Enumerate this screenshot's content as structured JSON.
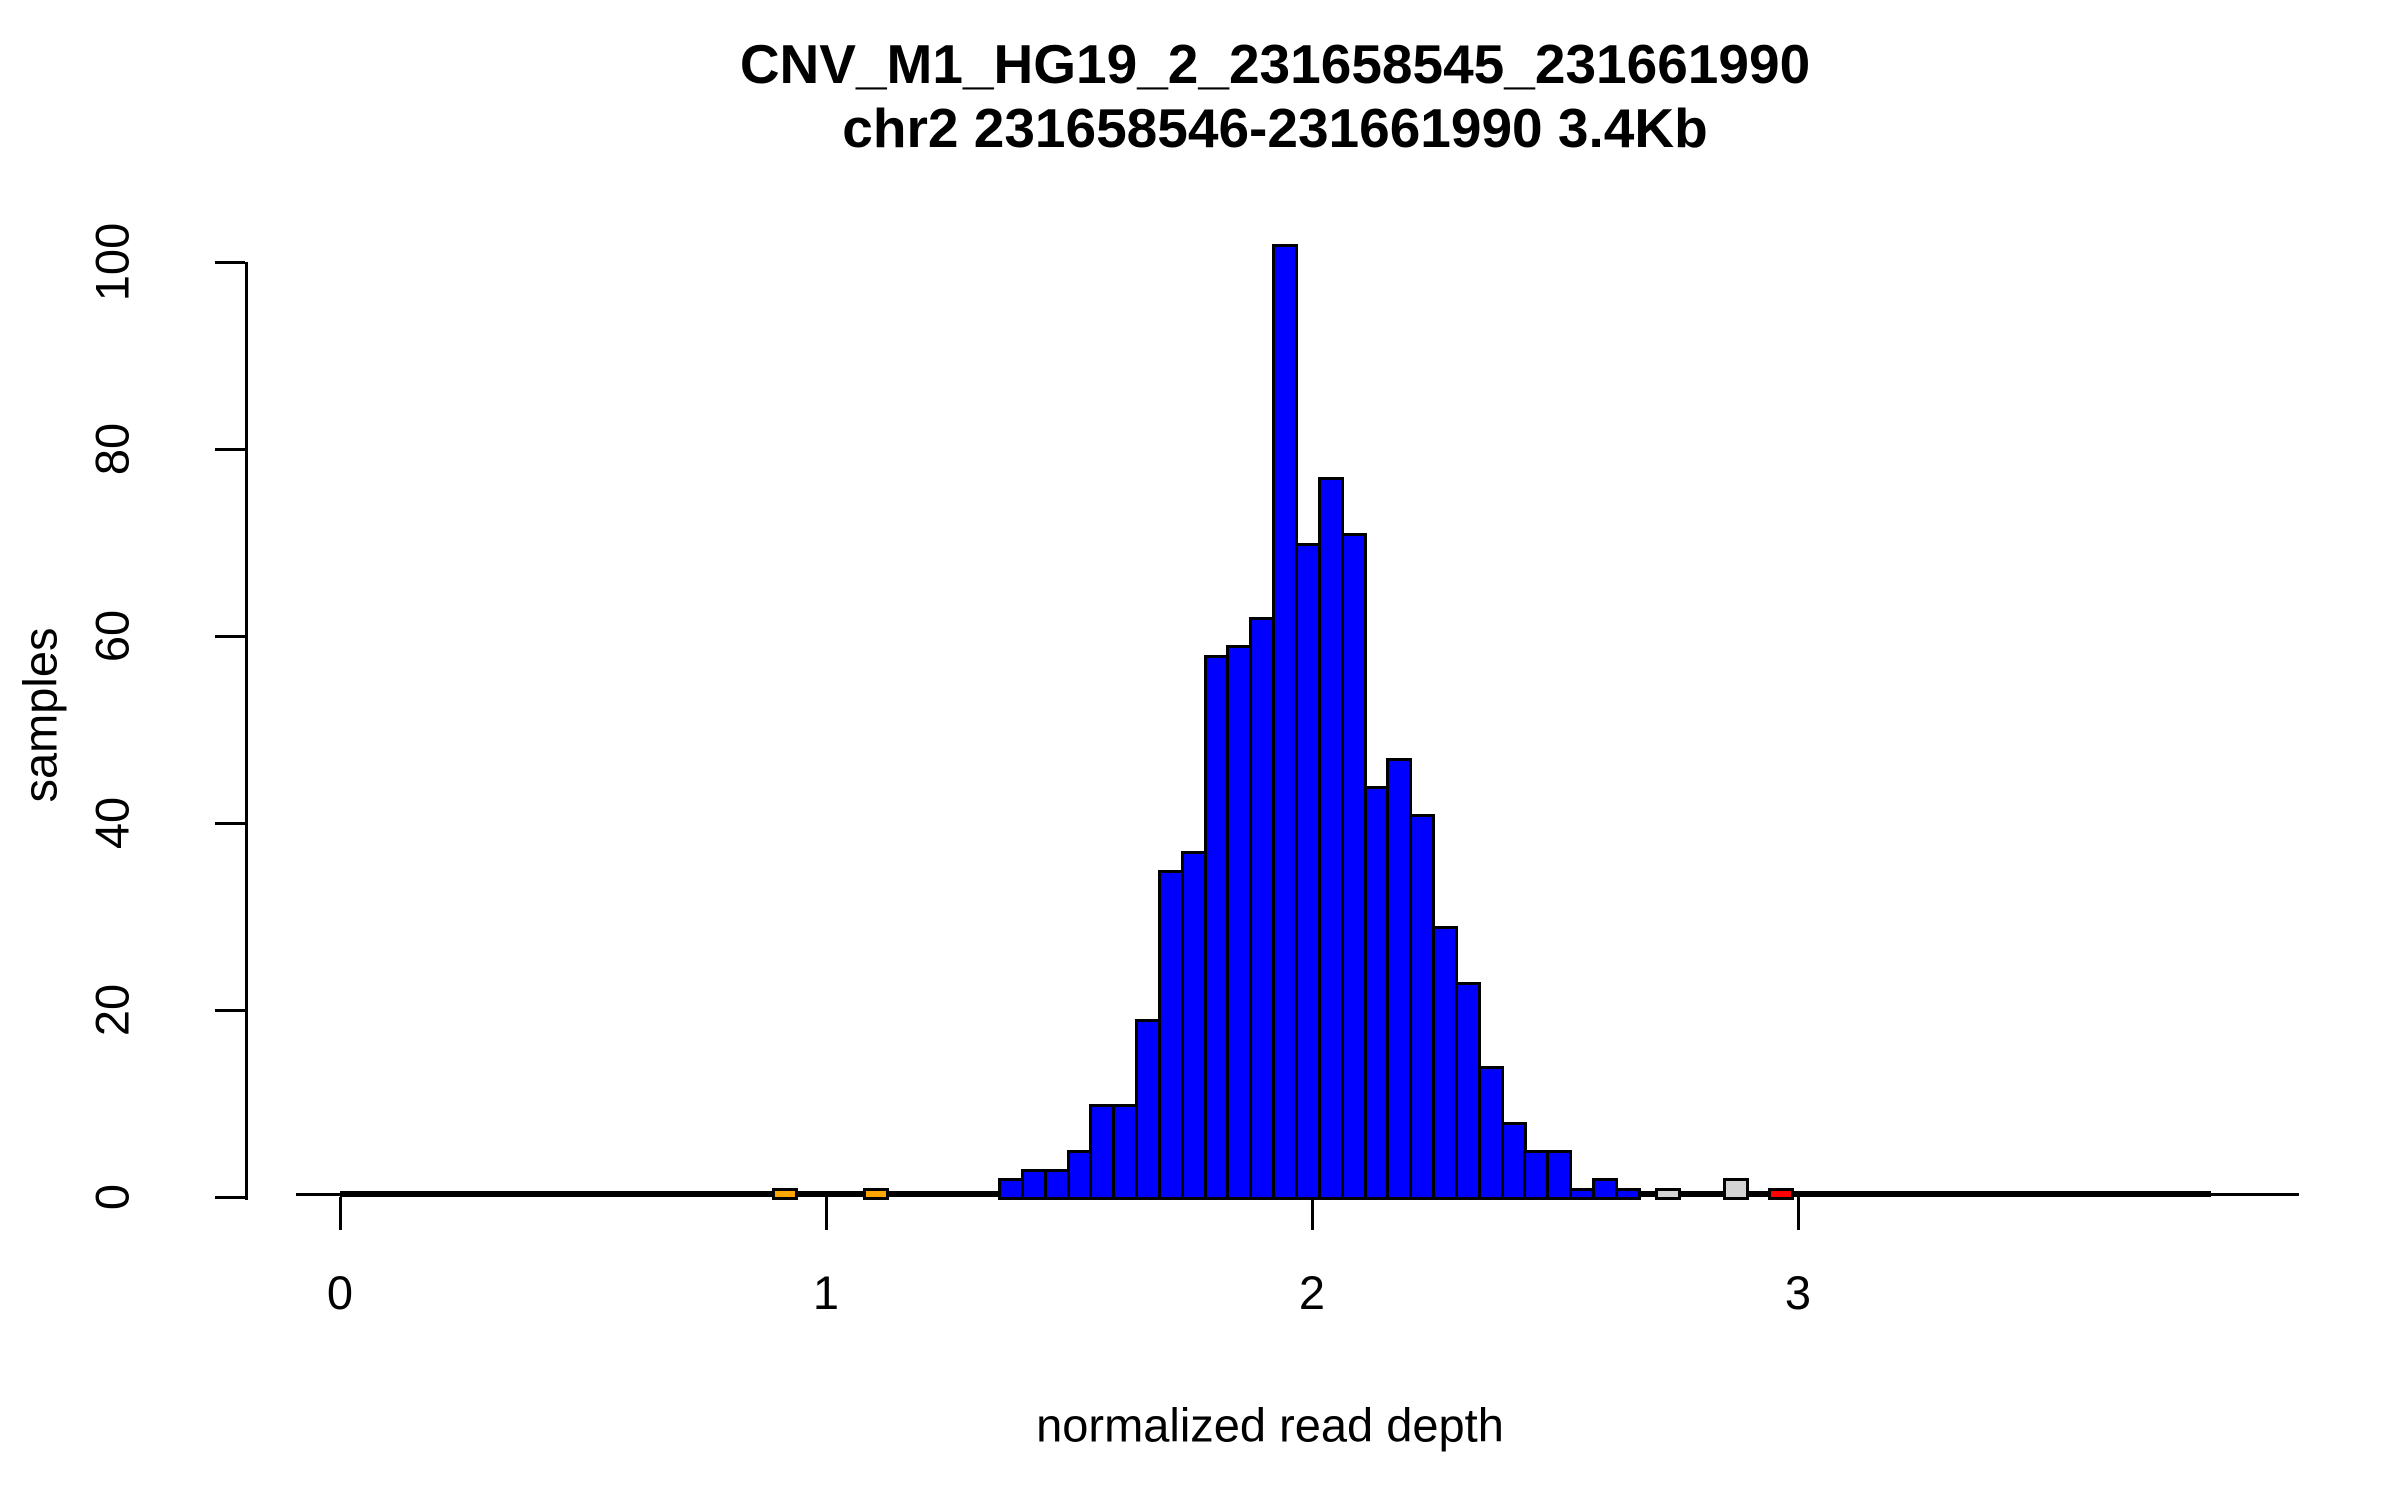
{
  "title": "CNV_M1_HG19_2_231658545_231661990",
  "subtitle": "chr2 231658546-231661990 3.4Kb",
  "xlabel": "normalized read depth",
  "ylabel": "samples",
  "chart_data": {
    "type": "bar",
    "subtype": "histogram",
    "title": "CNV_M1_HG19_2_231658545_231661990",
    "subtitle": "chr2 231658546-231661990 3.4Kb",
    "xlabel": "normalized read depth",
    "ylabel": "samples",
    "xlim": [
      -0.09,
      4.03
    ],
    "ylim": [
      0,
      102
    ],
    "grid": "off",
    "x_ticks": [
      0,
      1,
      2,
      3
    ],
    "y_ticks": [
      0,
      20,
      40,
      60,
      80,
      100
    ],
    "bin_width": 0.047,
    "zero_baseline_span": [
      0,
      3.85
    ],
    "colors": {
      "blue": "#0000FF",
      "orange": "#FFA500",
      "gray": "#D3D3D3",
      "red": "#FF0000",
      "bar_border": "#000000"
    },
    "bins": [
      {
        "x": 0.889,
        "count": 1,
        "color": "orange"
      },
      {
        "x": 1.076,
        "count": 1,
        "color": "orange"
      },
      {
        "x": 1.354,
        "count": 2,
        "color": "blue"
      },
      {
        "x": 1.401,
        "count": 3,
        "color": "blue"
      },
      {
        "x": 1.448,
        "count": 3,
        "color": "blue"
      },
      {
        "x": 1.495,
        "count": 5,
        "color": "blue"
      },
      {
        "x": 1.542,
        "count": 10,
        "color": "blue"
      },
      {
        "x": 1.589,
        "count": 10,
        "color": "blue"
      },
      {
        "x": 1.636,
        "count": 19,
        "color": "blue"
      },
      {
        "x": 1.683,
        "count": 35,
        "color": "blue"
      },
      {
        "x": 1.73,
        "count": 37,
        "color": "blue"
      },
      {
        "x": 1.777,
        "count": 58,
        "color": "blue"
      },
      {
        "x": 1.824,
        "count": 59,
        "color": "blue"
      },
      {
        "x": 1.871,
        "count": 62,
        "color": "blue"
      },
      {
        "x": 1.918,
        "count": 102,
        "color": "blue"
      },
      {
        "x": 1.965,
        "count": 70,
        "color": "blue"
      },
      {
        "x": 2.012,
        "count": 77,
        "color": "blue"
      },
      {
        "x": 2.059,
        "count": 71,
        "color": "blue"
      },
      {
        "x": 2.106,
        "count": 44,
        "color": "blue"
      },
      {
        "x": 2.153,
        "count": 47,
        "color": "blue"
      },
      {
        "x": 2.2,
        "count": 41,
        "color": "blue"
      },
      {
        "x": 2.247,
        "count": 29,
        "color": "blue"
      },
      {
        "x": 2.294,
        "count": 23,
        "color": "blue"
      },
      {
        "x": 2.341,
        "count": 14,
        "color": "blue"
      },
      {
        "x": 2.388,
        "count": 8,
        "color": "blue"
      },
      {
        "x": 2.435,
        "count": 5,
        "color": "blue"
      },
      {
        "x": 2.482,
        "count": 5,
        "color": "blue"
      },
      {
        "x": 2.529,
        "count": 1,
        "color": "blue"
      },
      {
        "x": 2.576,
        "count": 2,
        "color": "blue"
      },
      {
        "x": 2.623,
        "count": 1,
        "color": "blue"
      },
      {
        "x": 2.705,
        "count": 1,
        "color": "gray"
      },
      {
        "x": 2.845,
        "count": 2,
        "color": "gray"
      },
      {
        "x": 2.938,
        "count": 1,
        "color": "red"
      }
    ]
  }
}
